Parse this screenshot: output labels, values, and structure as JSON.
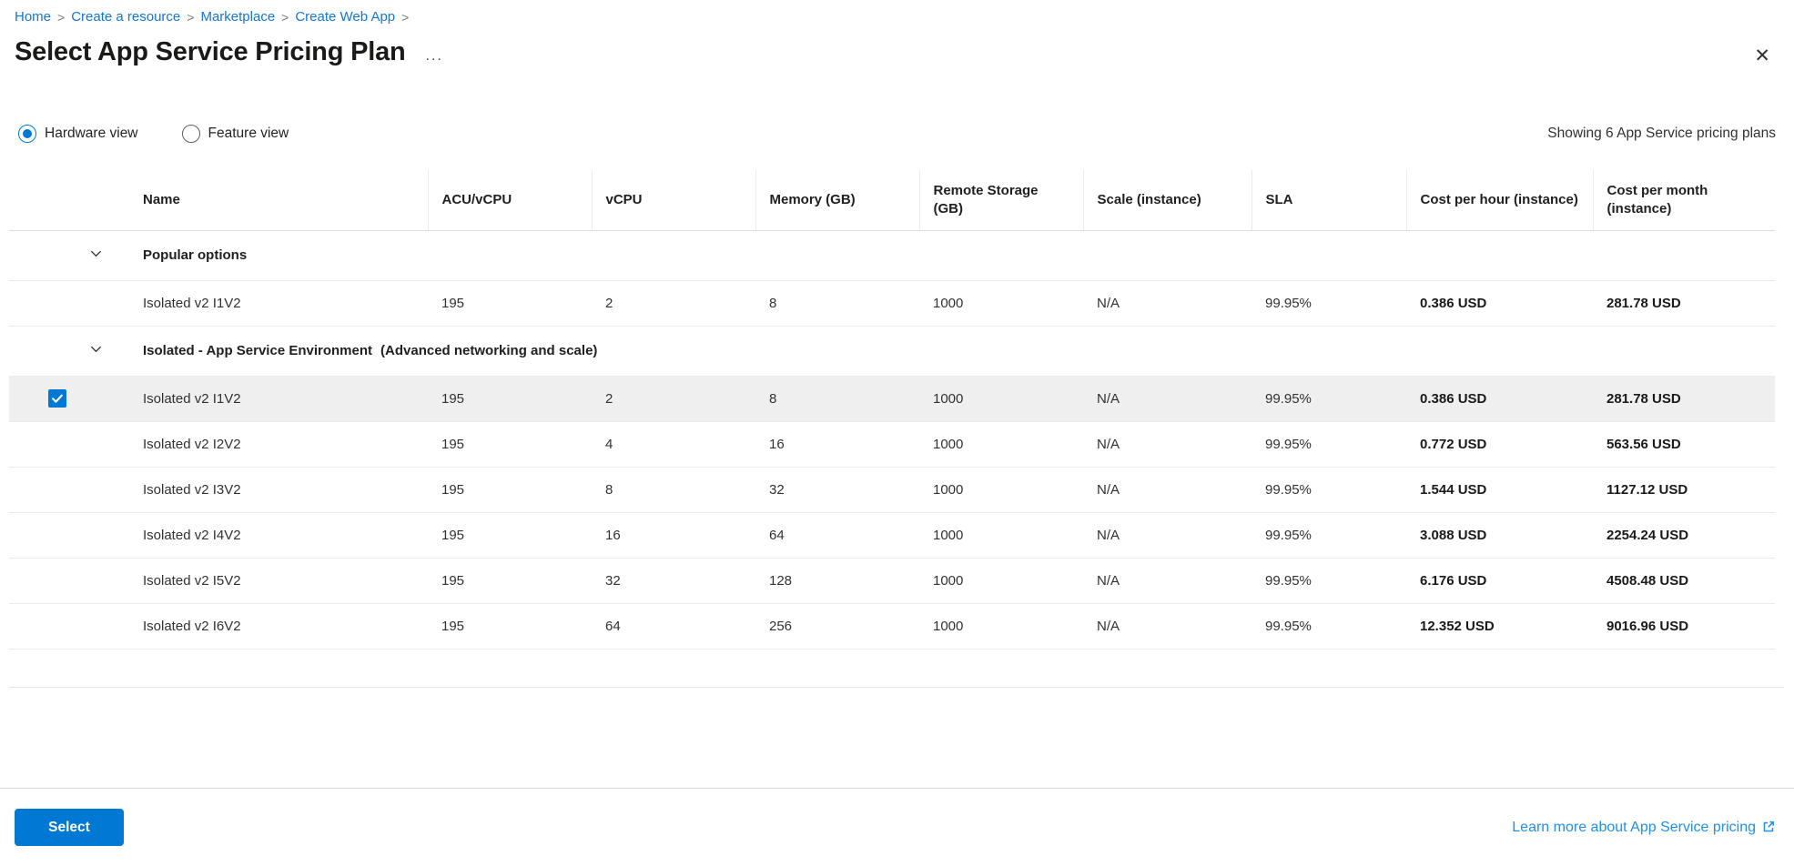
{
  "breadcrumb": {
    "items": [
      "Home",
      "Create a resource",
      "Marketplace",
      "Create Web App"
    ],
    "separator": ">"
  },
  "header": {
    "title": "Select App Service Pricing Plan",
    "ellipsis": "...",
    "close_glyph": "✕"
  },
  "view_toggle": {
    "options": [
      {
        "label": "Hardware view",
        "selected": true
      },
      {
        "label": "Feature view",
        "selected": false
      }
    ],
    "summary": "Showing 6 App Service pricing plans"
  },
  "table": {
    "columns": [
      "Name",
      "ACU/vCPU",
      "vCPU",
      "Memory (GB)",
      "Remote Storage (GB)",
      "Scale (instance)",
      "SLA",
      "Cost per hour (instance)",
      "Cost per month (instance)"
    ],
    "sections": [
      {
        "title": "Popular options",
        "subtitle": "",
        "rows": [
          {
            "name": "Isolated v2 I1V2",
            "acu": "195",
            "vcpu": "2",
            "memory": "8",
            "storage": "1000",
            "scale": "N/A",
            "sla": "99.95%",
            "cost_hour": "0.386 USD",
            "cost_month": "281.78 USD",
            "selected": false
          }
        ]
      },
      {
        "title": "Isolated - App Service Environment",
        "subtitle": "(Advanced networking and scale)",
        "rows": [
          {
            "name": "Isolated v2 I1V2",
            "acu": "195",
            "vcpu": "2",
            "memory": "8",
            "storage": "1000",
            "scale": "N/A",
            "sla": "99.95%",
            "cost_hour": "0.386 USD",
            "cost_month": "281.78 USD",
            "selected": true
          },
          {
            "name": "Isolated v2 I2V2",
            "acu": "195",
            "vcpu": "4",
            "memory": "16",
            "storage": "1000",
            "scale": "N/A",
            "sla": "99.95%",
            "cost_hour": "0.772 USD",
            "cost_month": "563.56 USD",
            "selected": false
          },
          {
            "name": "Isolated v2 I3V2",
            "acu": "195",
            "vcpu": "8",
            "memory": "32",
            "storage": "1000",
            "scale": "N/A",
            "sla": "99.95%",
            "cost_hour": "1.544 USD",
            "cost_month": "1127.12 USD",
            "selected": false
          },
          {
            "name": "Isolated v2 I4V2",
            "acu": "195",
            "vcpu": "16",
            "memory": "64",
            "storage": "1000",
            "scale": "N/A",
            "sla": "99.95%",
            "cost_hour": "3.088 USD",
            "cost_month": "2254.24 USD",
            "selected": false
          },
          {
            "name": "Isolated v2 I5V2",
            "acu": "195",
            "vcpu": "32",
            "memory": "128",
            "storage": "1000",
            "scale": "N/A",
            "sla": "99.95%",
            "cost_hour": "6.176 USD",
            "cost_month": "4508.48 USD",
            "selected": false
          },
          {
            "name": "Isolated v2 I6V2",
            "acu": "195",
            "vcpu": "64",
            "memory": "256",
            "storage": "1000",
            "scale": "N/A",
            "sla": "99.95%",
            "cost_hour": "12.352 USD",
            "cost_month": "9016.96 USD",
            "selected": false
          }
        ]
      }
    ]
  },
  "footer": {
    "select_label": "Select",
    "learn_more_label": "Learn more about App Service pricing"
  },
  "colors": {
    "accent": "#0078d4",
    "breadcrumb_link": "#1377d8",
    "learn_more_link": "#2290ea",
    "selected_row_bg": "#efefef"
  }
}
